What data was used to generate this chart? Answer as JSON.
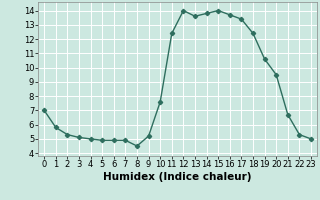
{
  "x": [
    0,
    1,
    2,
    3,
    4,
    5,
    6,
    7,
    8,
    9,
    10,
    11,
    12,
    13,
    14,
    15,
    16,
    17,
    18,
    19,
    20,
    21,
    22,
    23
  ],
  "y": [
    7.0,
    5.8,
    5.3,
    5.1,
    5.0,
    4.9,
    4.9,
    4.9,
    4.5,
    5.2,
    7.6,
    12.4,
    14.0,
    13.6,
    13.8,
    14.0,
    13.7,
    13.4,
    12.4,
    10.6,
    9.5,
    6.7,
    5.3,
    5.0
  ],
  "xlabel": "Humidex (Indice chaleur)",
  "xlim": [
    -0.5,
    23.5
  ],
  "ylim": [
    3.8,
    14.6
  ],
  "yticks": [
    4,
    5,
    6,
    7,
    8,
    9,
    10,
    11,
    12,
    13,
    14
  ],
  "xticks": [
    0,
    1,
    2,
    3,
    4,
    5,
    6,
    7,
    8,
    9,
    10,
    11,
    12,
    13,
    14,
    15,
    16,
    17,
    18,
    19,
    20,
    21,
    22,
    23
  ],
  "line_color": "#2e6e5e",
  "bg_color": "#cce8e0",
  "grid_color": "#ffffff",
  "marker": "D",
  "marker_size": 2.2,
  "line_width": 1.0,
  "xlabel_fontsize": 7.5,
  "tick_fontsize": 6.0
}
